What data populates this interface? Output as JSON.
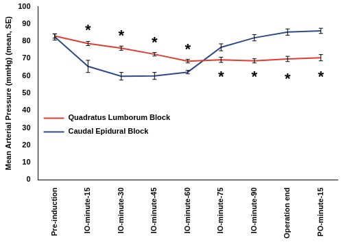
{
  "chart_data": {
    "type": "line",
    "y_label": "Mean Arterial Pressure (mmHg) (mean, SE)",
    "categories": [
      "Pre-induction",
      "IO-minute-15",
      "IO-minute-30",
      "IO-minute-45",
      "IO-minute-60",
      "IO-minute-75",
      "IO-minute-90",
      "Operation end",
      "PO-minute-15"
    ],
    "series": [
      {
        "name": "Quadratus Lumborum Block",
        "color": "#e03c31",
        "values": [
          83,
          78.7,
          76,
          72.5,
          68.5,
          69.3,
          68.7,
          69.8,
          70.5
        ],
        "error": [
          1.2,
          1.2,
          1.2,
          1,
          1,
          1.5,
          1.2,
          1.5,
          1.8
        ]
      },
      {
        "name": "Caudal Epidural Block",
        "color": "#2e4a8a",
        "values": [
          82.5,
          65.5,
          59.8,
          60,
          62.2,
          76.5,
          82,
          85.3,
          86
        ],
        "error": [
          1.8,
          3.5,
          2.2,
          2,
          1,
          2,
          1.8,
          1.8,
          1.5
        ]
      }
    ],
    "annotations": [
      {
        "text": "*",
        "category": "IO-minute-15",
        "y": 88
      },
      {
        "text": "*",
        "category": "IO-minute-30",
        "y": 85
      },
      {
        "text": "*",
        "category": "IO-minute-45",
        "y": 81
      },
      {
        "text": "*",
        "category": "IO-minute-60",
        "y": 77
      },
      {
        "text": "*",
        "category": "IO-minute-75",
        "y": 61
      },
      {
        "text": "*",
        "category": "IO-minute-90",
        "y": 61
      },
      {
        "text": "*",
        "category": "Operation end",
        "y": 60
      },
      {
        "text": "*",
        "category": "PO-minute-15",
        "y": 61
      }
    ],
    "ylim": [
      0,
      100
    ],
    "yticks": [
      0,
      10,
      20,
      30,
      40,
      50,
      60,
      70,
      80,
      90,
      100
    ],
    "grid": false,
    "legend": "lower left"
  }
}
